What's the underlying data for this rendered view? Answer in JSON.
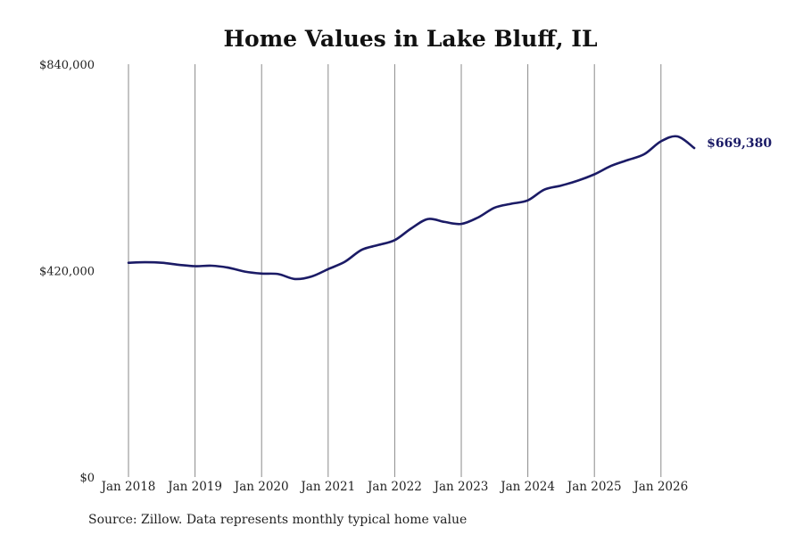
{
  "chart_data": {
    "type": "line",
    "title": "Home Values in Lake Bluff, IL",
    "xlabel": "",
    "ylabel": "",
    "ylim": [
      0,
      840000
    ],
    "yticks": [
      {
        "value": 0,
        "label": "$0"
      },
      {
        "value": 420000,
        "label": "$420,000"
      },
      {
        "value": 840000,
        "label": "$840,000"
      }
    ],
    "xticks": [
      {
        "value": 2018,
        "label": "Jan 2018"
      },
      {
        "value": 2019,
        "label": "Jan 2019"
      },
      {
        "value": 2020,
        "label": "Jan 2020"
      },
      {
        "value": 2021,
        "label": "Jan 2021"
      },
      {
        "value": 2022,
        "label": "Jan 2022"
      },
      {
        "value": 2023,
        "label": "Jan 2023"
      },
      {
        "value": 2024,
        "label": "Jan 2024"
      },
      {
        "value": 2025,
        "label": "Jan 2025"
      },
      {
        "value": 2026,
        "label": "Jan 2026"
      }
    ],
    "xlim": [
      2018,
      2026.5
    ],
    "grid": "vertical",
    "line_color": "#1b1b66",
    "series": [
      {
        "x": [
          2018.0,
          2018.25,
          2018.5,
          2018.75,
          2019.0,
          2019.25,
          2019.5,
          2019.75,
          2020.0,
          2020.25,
          2020.5,
          2020.75,
          2021.0,
          2021.25,
          2021.5,
          2021.75,
          2022.0,
          2022.25,
          2022.5,
          2022.75,
          2023.0,
          2023.25,
          2023.5,
          2023.75,
          2024.0,
          2024.25,
          2024.5,
          2024.75,
          2025.0,
          2025.25,
          2025.5,
          2025.75,
          2026.0,
          2026.25,
          2026.5
        ],
        "y": [
          436000,
          437000,
          436000,
          432000,
          429000,
          430000,
          426000,
          418000,
          414000,
          413000,
          403000,
          408000,
          423000,
          438000,
          462000,
          472000,
          482000,
          506000,
          525000,
          519000,
          515000,
          528000,
          548000,
          556000,
          563000,
          585000,
          593000,
          603000,
          616000,
          633000,
          645000,
          657000,
          683000,
          693000,
          669380
        ]
      }
    ],
    "end_label": "$669,380",
    "source": "Source: Zillow. Data represents monthly typical home value"
  }
}
